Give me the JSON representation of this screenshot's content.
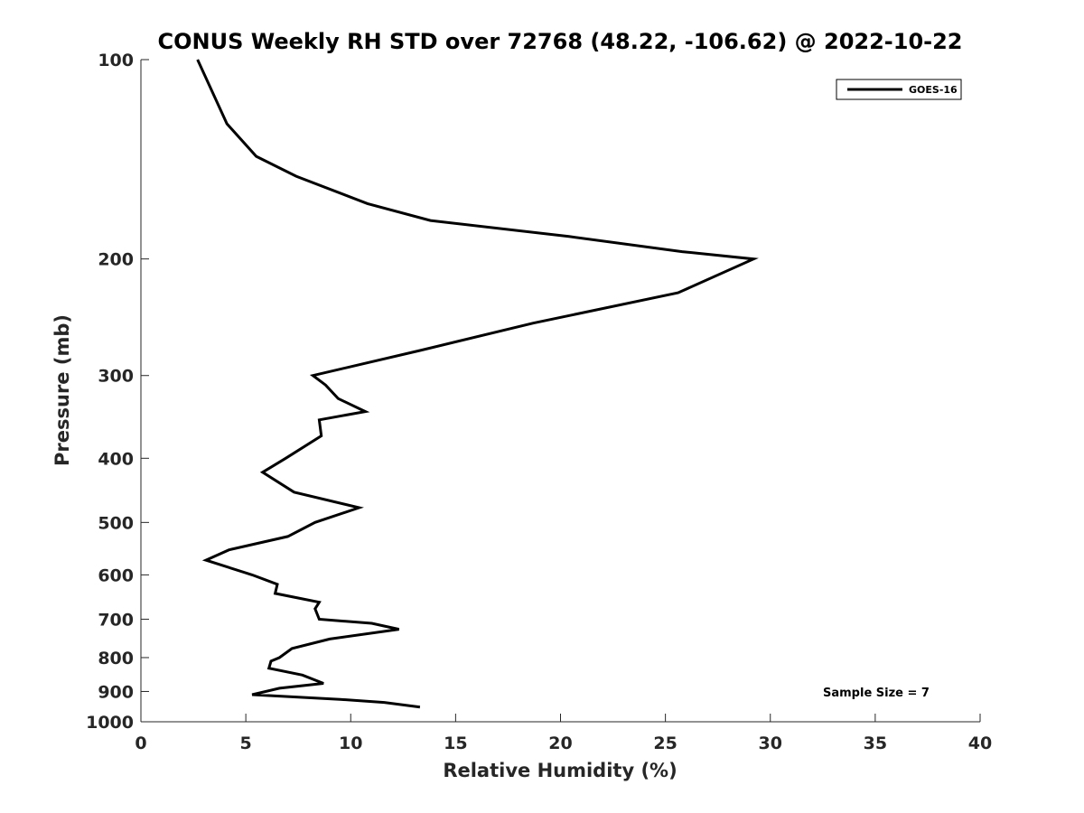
{
  "chart_data": {
    "type": "line",
    "title": "CONUS Weekly RH STD over 72768 (48.22, -106.62) @ 2022-10-22",
    "xlabel": "Relative Humidity (%)",
    "ylabel": "Pressure (mb)",
    "xlim": [
      0,
      40
    ],
    "ylim": [
      100,
      1000
    ],
    "yscale": "log",
    "y_reversed": true,
    "grid": false,
    "legend_placement": "top-right",
    "xticks": [
      0,
      5,
      10,
      15,
      20,
      25,
      30,
      35,
      40
    ],
    "yticks": [
      100,
      200,
      300,
      400,
      500,
      600,
      700,
      800,
      900,
      1000
    ],
    "annotation": "Sample Size = 7",
    "series": [
      {
        "name": "GOES-16",
        "color": "#000000",
        "points": [
          [
            2.7,
            100
          ],
          [
            4.1,
            125
          ],
          [
            5.5,
            140
          ],
          [
            7.4,
            150
          ],
          [
            10.8,
            165
          ],
          [
            13.8,
            175
          ],
          [
            20.4,
            185
          ],
          [
            25.8,
            195
          ],
          [
            29.2,
            200
          ],
          [
            25.6,
            225
          ],
          [
            18.7,
            250
          ],
          [
            13.3,
            275
          ],
          [
            8.2,
            300
          ],
          [
            8.8,
            310
          ],
          [
            9.4,
            325
          ],
          [
            10.7,
            340
          ],
          [
            8.5,
            350
          ],
          [
            8.6,
            370
          ],
          [
            6.9,
            400
          ],
          [
            5.8,
            420
          ],
          [
            7.3,
            450
          ],
          [
            10.4,
            475
          ],
          [
            8.3,
            500
          ],
          [
            7.0,
            525
          ],
          [
            4.2,
            550
          ],
          [
            3.1,
            570
          ],
          [
            5.3,
            600
          ],
          [
            6.5,
            620
          ],
          [
            6.4,
            640
          ],
          [
            8.5,
            660
          ],
          [
            8.3,
            675
          ],
          [
            8.5,
            700
          ],
          [
            11.0,
            710
          ],
          [
            12.3,
            725
          ],
          [
            9.0,
            750
          ],
          [
            7.2,
            775
          ],
          [
            6.6,
            800
          ],
          [
            6.2,
            810
          ],
          [
            6.1,
            830
          ],
          [
            7.7,
            850
          ],
          [
            8.7,
            875
          ],
          [
            6.6,
            890
          ],
          [
            5.3,
            910
          ],
          [
            9.5,
            925
          ],
          [
            11.6,
            935
          ],
          [
            13.3,
            950
          ]
        ]
      }
    ]
  }
}
